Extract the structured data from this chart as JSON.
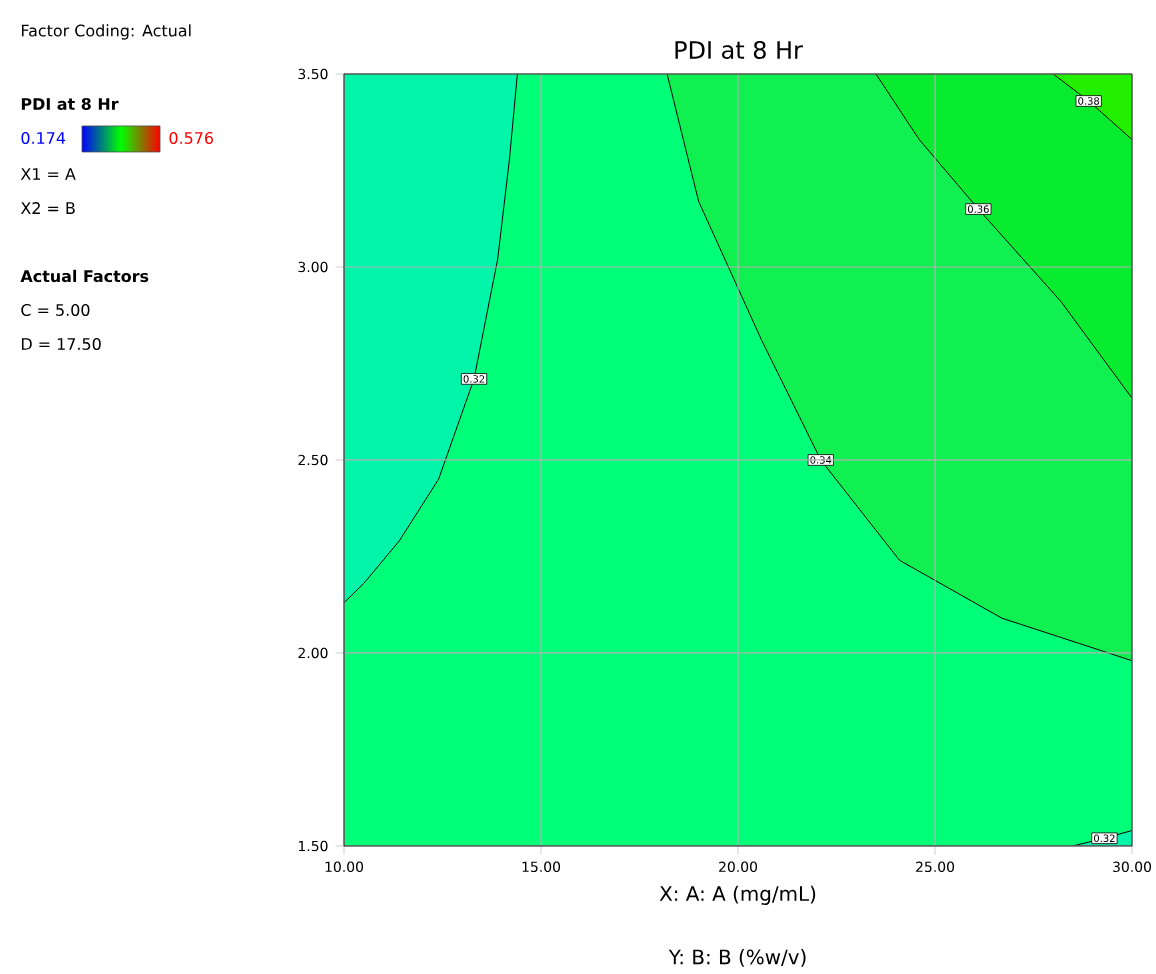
{
  "chart_data": {
    "type": "area",
    "title": "PDI at 8 Hr",
    "xlabel": "X: A: A (mg/mL)",
    "legend_title": "PDI at 8 Hr",
    "annotations": [
      "Factor Coding: Actual",
      "X1 = A",
      "X2 = B",
      "Actual Factors",
      "C = 5.00",
      "D = 17.50",
      "0.174",
      "0.576",
      "Y: B: B (%w/v)"
    ],
    "xlim": [
      10,
      30
    ],
    "ylim": [
      1.5,
      3.5
    ],
    "xticks": [
      {
        "value": 10,
        "label": "10.00"
      },
      {
        "value": 15,
        "label": "15.00"
      },
      {
        "value": 20,
        "label": "20.00"
      },
      {
        "value": 25,
        "label": "25.00"
      },
      {
        "value": 30,
        "label": "30.00"
      }
    ],
    "yticks": [
      {
        "value": 1.5,
        "label": "1.50"
      },
      {
        "value": 2,
        "label": "2.00"
      },
      {
        "value": 2.5,
        "label": "2.50"
      },
      {
        "value": 3,
        "label": "3.00"
      },
      {
        "value": 3.5,
        "label": "3.50"
      }
    ],
    "grid": true,
    "series": [
      {
        "name": "0.32",
        "color": "#00f5a8",
        "x": [
          10,
          10.5,
          11.4,
          12.4,
          13.3,
          13.9,
          14.2,
          14.4,
          10
        ],
        "values": [
          2.13,
          2.18,
          2.29,
          2.45,
          2.71,
          3.02,
          3.28,
          3.5,
          3.5
        ]
      },
      {
        "name": "0.34",
        "color": "#10f050",
        "x": [
          18.2,
          19.0,
          20.6,
          22.1,
          24.1,
          26.7,
          30,
          30
        ],
        "values": [
          3.5,
          3.17,
          2.81,
          2.5,
          2.24,
          2.09,
          1.98,
          3.5
        ]
      },
      {
        "name": "0.36",
        "color": "#08ec30",
        "x": [
          23.5,
          24.6,
          26.1,
          28.2,
          30,
          30
        ],
        "values": [
          3.5,
          3.33,
          3.15,
          2.91,
          2.66,
          3.5
        ]
      },
      {
        "name": "0.38",
        "color": "#22f000",
        "x": [
          28.0,
          28.9,
          30,
          30
        ],
        "values": [
          3.5,
          3.43,
          3.33,
          3.5
        ]
      },
      {
        "name": "0.32",
        "color": "#00f5a8",
        "x": [
          28.5,
          29.3,
          30,
          30
        ],
        "values": [
          1.5,
          1.52,
          1.54,
          1.5
        ]
      }
    ]
  }
}
